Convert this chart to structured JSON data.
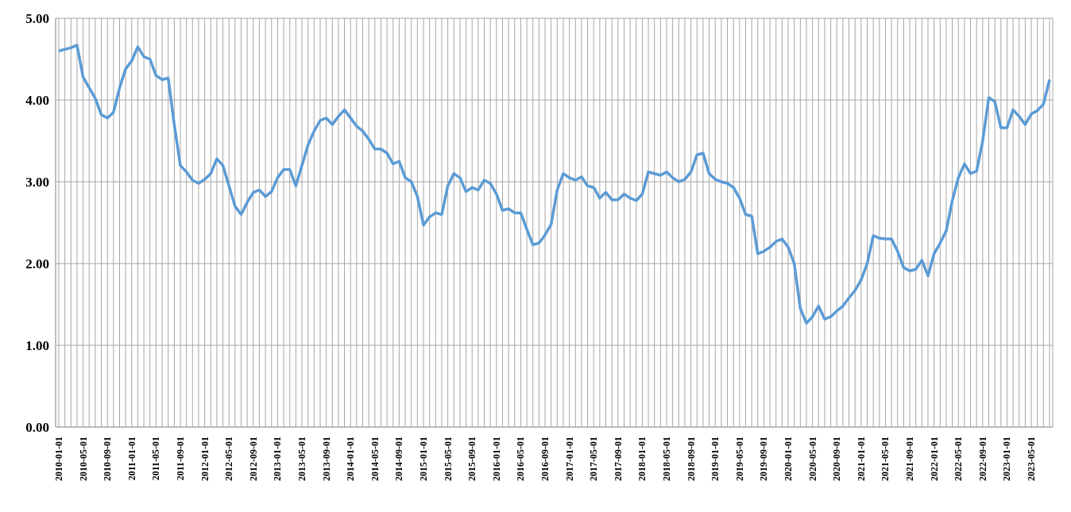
{
  "chart_data": {
    "type": "line",
    "categories": [
      "2010-01-01",
      null,
      null,
      null,
      "2010-05-01",
      null,
      null,
      null,
      "2010-09-01",
      null,
      null,
      null,
      "2011-01-01",
      null,
      null,
      null,
      "2011-05-01",
      null,
      null,
      null,
      "2011-09-01",
      null,
      null,
      null,
      "2012-01-01",
      null,
      null,
      null,
      "2012-05-01",
      null,
      null,
      null,
      "2012-09-01",
      null,
      null,
      null,
      "2013-01-01",
      null,
      null,
      null,
      "2013-05-01",
      null,
      null,
      null,
      "2013-09-01",
      null,
      null,
      null,
      "2014-01-01",
      null,
      null,
      null,
      "2014-05-01",
      null,
      null,
      null,
      "2014-09-01",
      null,
      null,
      null,
      "2015-01-01",
      null,
      null,
      null,
      "2015-05-01",
      null,
      null,
      null,
      "2015-09-01",
      null,
      null,
      null,
      "2016-01-01",
      null,
      null,
      null,
      "2016-05-01",
      null,
      null,
      null,
      "2016-09-01",
      null,
      null,
      null,
      "2017-01-01",
      null,
      null,
      null,
      "2017-05-01",
      null,
      null,
      null,
      "2017-09-01",
      null,
      null,
      null,
      "2018-01-01",
      null,
      null,
      null,
      "2018-05-01",
      null,
      null,
      null,
      "2018-09-01",
      null,
      null,
      null,
      "2019-01-01",
      null,
      null,
      null,
      "2019-05-01",
      null,
      null,
      null,
      "2019-09-01",
      null,
      null,
      null,
      "2020-01-01",
      null,
      null,
      null,
      "2020-05-01",
      null,
      null,
      null,
      "2020-09-01",
      null,
      null,
      null,
      "2021-01-01",
      null,
      null,
      null,
      "2021-05-01",
      null,
      null,
      null,
      "2021-09-01",
      null,
      null,
      null,
      "2022-01-01",
      null,
      null,
      null,
      "2022-05-01",
      null,
      null,
      null,
      "2022-09-01",
      null,
      null,
      null,
      "2023-01-01",
      null,
      null,
      null,
      "2023-05-01",
      null,
      null,
      null
    ],
    "series": [
      {
        "color": "#5b9bd5",
        "values": [
          4.6,
          4.62,
          4.64,
          4.67,
          4.28,
          4.15,
          4.02,
          3.82,
          3.78,
          3.85,
          4.15,
          4.38,
          4.48,
          4.65,
          4.53,
          4.5,
          4.3,
          4.25,
          4.27,
          3.7,
          3.2,
          3.12,
          3.02,
          2.98,
          3.03,
          3.1,
          3.28,
          3.2,
          2.95,
          2.7,
          2.6,
          2.75,
          2.87,
          2.9,
          2.82,
          2.88,
          3.05,
          3.15,
          3.15,
          2.95,
          3.2,
          3.45,
          3.62,
          3.75,
          3.78,
          3.7,
          3.8,
          3.88,
          3.78,
          3.68,
          3.62,
          3.52,
          3.4,
          3.4,
          3.35,
          3.22,
          3.25,
          3.05,
          3.0,
          2.82,
          2.47,
          2.57,
          2.62,
          2.6,
          2.95,
          3.1,
          3.05,
          2.88,
          2.93,
          2.9,
          3.02,
          2.98,
          2.85,
          2.65,
          2.67,
          2.62,
          2.62,
          2.42,
          2.23,
          2.25,
          2.35,
          2.48,
          2.9,
          3.1,
          3.05,
          3.02,
          3.06,
          2.95,
          2.93,
          2.8,
          2.87,
          2.78,
          2.78,
          2.85,
          2.8,
          2.77,
          2.85,
          3.12,
          3.1,
          3.08,
          3.12,
          3.05,
          3.0,
          3.03,
          3.12,
          3.33,
          3.35,
          3.1,
          3.03,
          3.0,
          2.98,
          2.93,
          2.8,
          2.6,
          2.58,
          2.12,
          2.15,
          2.2,
          2.27,
          2.3,
          2.2,
          2.0,
          1.45,
          1.27,
          1.35,
          1.48,
          1.32,
          1.35,
          1.42,
          1.48,
          1.58,
          1.67,
          1.8,
          2.0,
          2.34,
          2.31,
          2.3,
          2.3,
          2.15,
          1.95,
          1.91,
          1.93,
          2.04,
          1.85,
          2.12,
          2.25,
          2.4,
          2.77,
          3.05,
          3.22,
          3.1,
          3.13,
          3.5,
          4.03,
          3.98,
          3.66,
          3.66,
          3.88,
          3.8,
          3.7,
          3.83,
          3.87,
          3.95,
          4.25
        ]
      }
    ],
    "ylim": [
      0,
      5
    ],
    "yticks": [
      {
        "value": 0,
        "label": "0.00"
      },
      {
        "value": 1,
        "label": "1.00"
      },
      {
        "value": 2,
        "label": "2.00"
      },
      {
        "value": 3,
        "label": "3.00"
      },
      {
        "value": 4,
        "label": "4.00"
      },
      {
        "value": 5,
        "label": "5.00"
      }
    ],
    "grid": true,
    "marker": "none",
    "line_style": "solid"
  }
}
